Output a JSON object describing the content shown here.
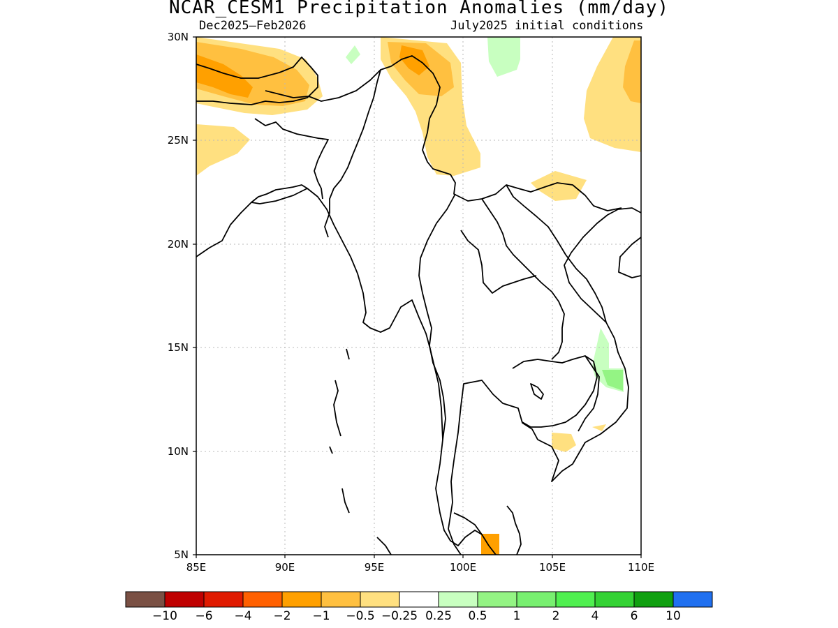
{
  "header": {
    "title": "NCAR_CESM1 Precipitation Anomalies (mm/day)",
    "period": "Dec2025–Feb2026",
    "init": "July2025 initial conditions"
  },
  "axes": {
    "lon_ticks": [
      "85E",
      "90E",
      "95E",
      "100E",
      "105E",
      "110E"
    ],
    "lat_ticks": [
      "30N",
      "25N",
      "20N",
      "15N",
      "10N",
      "5N"
    ]
  },
  "colorbar": {
    "colors": [
      "#7a5044",
      "#bf0000",
      "#e01a00",
      "#ff6000",
      "#ffa000",
      "#ffc040",
      "#ffe080",
      "#ffffff",
      "#c8ffc0",
      "#94f484",
      "#78f070",
      "#50f050",
      "#34d234",
      "#10a010",
      "#2070f0"
    ],
    "labels": [
      "−10",
      "−6",
      "−4",
      "−2",
      "−1",
      "−0.5",
      "−0.25",
      "0.25",
      "0.5",
      "1",
      "2",
      "4",
      "6",
      "10"
    ]
  }
}
